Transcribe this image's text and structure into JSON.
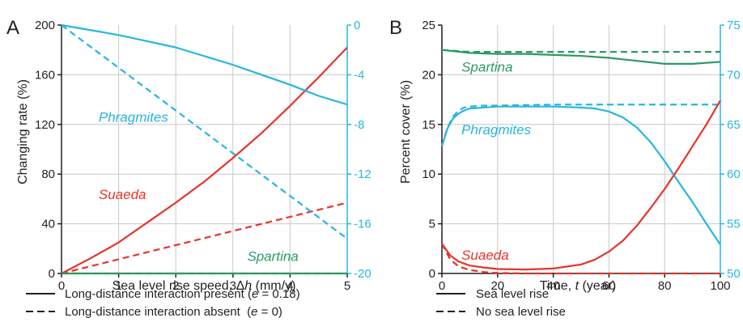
{
  "colors": {
    "blue": "#27b6e0",
    "red": "#e8332a",
    "green": "#2a9a64",
    "black": "#231f20",
    "grid": "#c8c8c8"
  },
  "legend": {
    "left_solid": "Long-distance interaction present (",
    "left_solid_e": "e",
    "left_solid_val": " = 0.18)",
    "left_dashed": "Long-distance interaction absent  (",
    "left_dashed_e": "e",
    "left_dashed_val": " = 0)",
    "right_solid": "Sea level rise",
    "right_dashed": "No sea level rise"
  },
  "chart_data": [
    {
      "panel": "A",
      "type": "line",
      "xlabel_main": "Sea level rise speed, Δ",
      "xlabel_var": "h",
      "xlabel_unit": " (mm/y)",
      "ylabel": "Changing rate (%)",
      "xlim": [
        0,
        5
      ],
      "ylim": [
        0,
        200
      ],
      "y2lim": [
        -20,
        0
      ],
      "xticks": [
        "0",
        "1",
        "2",
        "3",
        "4",
        "5"
      ],
      "yticks": [
        "0",
        "40",
        "80",
        "120",
        "160",
        "200"
      ],
      "y2ticks": [
        "-20",
        "-16",
        "-12",
        "-8",
        "-4",
        "0"
      ],
      "grid": true,
      "series": [
        {
          "name": "Suaeda",
          "color": "red",
          "dash": false,
          "axis": "left",
          "x": [
            0,
            0.5,
            1,
            1.5,
            2,
            2.5,
            3,
            3.5,
            4,
            4.5,
            5
          ],
          "y": [
            0,
            12,
            25,
            41,
            57,
            74,
            93,
            113,
            135,
            158,
            182
          ]
        },
        {
          "name": "Suaeda",
          "color": "red",
          "dash": true,
          "axis": "left",
          "x": [
            0,
            5
          ],
          "y": [
            0,
            57
          ]
        },
        {
          "name": "Spartina",
          "color": "green",
          "dash": false,
          "axis": "left",
          "x": [
            0,
            5
          ],
          "y": [
            0,
            0
          ]
        },
        {
          "name": "Spartina",
          "color": "green",
          "dash": true,
          "axis": "left",
          "x": [
            0,
            5
          ],
          "y": [
            0,
            0
          ]
        },
        {
          "name": "Phragmites",
          "color": "blue",
          "dash": false,
          "axis": "right",
          "x": [
            0,
            0.5,
            1,
            1.5,
            2,
            2.5,
            3,
            3.5,
            4,
            4.5,
            5
          ],
          "y": [
            0,
            -0.4,
            -0.8,
            -1.3,
            -1.8,
            -2.5,
            -3.2,
            -4.0,
            -4.8,
            -5.7,
            -6.4
          ]
        },
        {
          "name": "Phragmites",
          "color": "blue",
          "dash": true,
          "axis": "right",
          "x": [
            0,
            5
          ],
          "y": [
            0,
            -17.2
          ]
        }
      ],
      "labels": [
        {
          "text": "Phragmites",
          "color": "blue",
          "x": 0.65,
          "y": 122
        },
        {
          "text": "Suaeda",
          "color": "red",
          "x": 0.65,
          "y": 60
        },
        {
          "text": "Spartina",
          "color": "green",
          "x": 3.25,
          "y": 10
        }
      ]
    },
    {
      "panel": "B",
      "type": "line",
      "xlabel_main": "Time,  ",
      "xlabel_var": "t",
      "xlabel_unit": " (year)",
      "ylabel": "Percent cover (%)",
      "xlim": [
        0,
        100
      ],
      "ylim": [
        0,
        25
      ],
      "y2lim": [
        50,
        75
      ],
      "xticks": [
        "0",
        "20",
        "40",
        "60",
        "80",
        "100"
      ],
      "yticks": [
        "0",
        "5",
        "10",
        "15",
        "20",
        "25"
      ],
      "y2ticks": [
        "50",
        "55",
        "60",
        "65",
        "70",
        "75"
      ],
      "grid": true,
      "series": [
        {
          "name": "Spartina",
          "color": "green",
          "dash": false,
          "axis": "left",
          "x": [
            0,
            10,
            20,
            30,
            40,
            50,
            60,
            70,
            80,
            85,
            90,
            100
          ],
          "y": [
            22.5,
            22.2,
            22.1,
            22.1,
            22.0,
            21.9,
            21.7,
            21.4,
            21.1,
            21.1,
            21.1,
            21.3
          ]
        },
        {
          "name": "Spartina",
          "color": "green",
          "dash": true,
          "axis": "left",
          "x": [
            0,
            10,
            100
          ],
          "y": [
            22.5,
            22.3,
            22.3
          ]
        },
        {
          "name": "Phragmites",
          "color": "blue",
          "dash": false,
          "axis": "left",
          "x": [
            0,
            2,
            4,
            6,
            8,
            10,
            15,
            20,
            30,
            40,
            50,
            55,
            60,
            65,
            70,
            75,
            80,
            85,
            90,
            95,
            100
          ],
          "y": [
            12.8,
            14.6,
            15.6,
            16.1,
            16.4,
            16.6,
            16.7,
            16.8,
            16.8,
            16.8,
            16.7,
            16.6,
            16.3,
            15.7,
            14.7,
            13.2,
            11.3,
            9.2,
            7.2,
            5.0,
            2.9
          ]
        },
        {
          "name": "Phragmites",
          "color": "blue",
          "dash": true,
          "axis": "left",
          "x": [
            0,
            2,
            4,
            6,
            8,
            10,
            15,
            20,
            40,
            60,
            100
          ],
          "y": [
            12.8,
            14.7,
            15.8,
            16.4,
            16.7,
            16.8,
            16.9,
            16.9,
            17.0,
            17.0,
            17.0
          ]
        },
        {
          "name": "Suaeda",
          "color": "red",
          "dash": false,
          "axis": "left",
          "x": [
            0,
            3,
            6,
            10,
            15,
            20,
            30,
            40,
            50,
            55,
            60,
            65,
            70,
            75,
            80,
            85,
            90,
            95,
            100
          ],
          "y": [
            3.0,
            1.8,
            1.2,
            0.8,
            0.6,
            0.45,
            0.4,
            0.5,
            0.9,
            1.4,
            2.2,
            3.3,
            4.8,
            6.6,
            8.5,
            10.6,
            12.8,
            15.0,
            17.4
          ]
        },
        {
          "name": "Suaeda",
          "color": "red",
          "dash": true,
          "axis": "left",
          "x": [
            0,
            3,
            6,
            10,
            15,
            20,
            30,
            100
          ],
          "y": [
            3.0,
            1.4,
            0.7,
            0.35,
            0.15,
            0.05,
            0.0,
            0.0
          ]
        }
      ],
      "labels": [
        {
          "text": "Spartina",
          "color": "green",
          "x": 7,
          "y": 20.3
        },
        {
          "text": "Phragmites",
          "color": "blue",
          "x": 7,
          "y": 14.0
        },
        {
          "text": "Suaeda",
          "color": "red",
          "x": 7,
          "y": 1.4
        }
      ]
    }
  ]
}
